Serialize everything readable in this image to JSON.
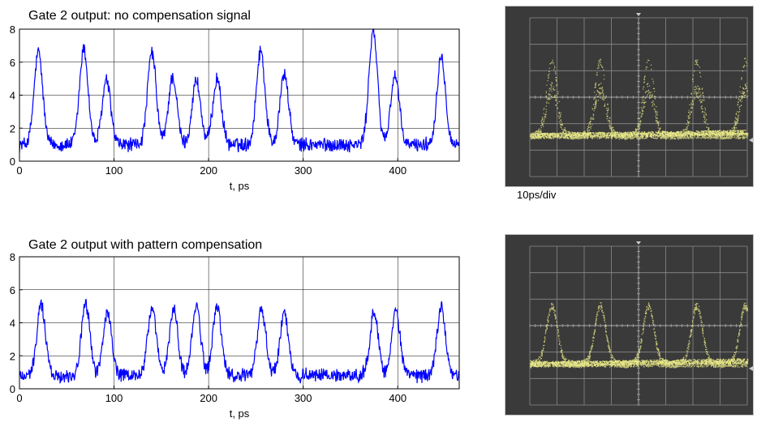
{
  "chart_data": [
    {
      "type": "line",
      "title": "Gate 2 output: no compensation signal",
      "xlabel": "t, ps",
      "ylabel": "",
      "xlim": [
        0,
        465
      ],
      "ylim": [
        0,
        8
      ],
      "xticks": [
        0,
        100,
        200,
        300,
        400
      ],
      "yticks": [
        0,
        2,
        4,
        6,
        8
      ],
      "grid": true,
      "baseline": 1.0,
      "pulse_width_ps": 4.5,
      "color": "#0000ff",
      "pulses": [
        {
          "t": 20,
          "peak": 6.6
        },
        {
          "t": 68,
          "peak": 6.8
        },
        {
          "t": 92,
          "peak": 4.9
        },
        {
          "t": 140,
          "peak": 6.6
        },
        {
          "t": 162,
          "peak": 5.1
        },
        {
          "t": 187,
          "peak": 4.9
        },
        {
          "t": 209,
          "peak": 5.0
        },
        {
          "t": 255,
          "peak": 6.7
        },
        {
          "t": 280,
          "peak": 5.3
        },
        {
          "t": 374,
          "peak": 7.9
        },
        {
          "t": 397,
          "peak": 5.2
        },
        {
          "t": 446,
          "peak": 6.4
        }
      ]
    },
    {
      "type": "line",
      "title": "Gate 2 output with pattern compensation",
      "xlabel": "t, ps",
      "ylabel": "",
      "xlim": [
        0,
        465
      ],
      "ylim": [
        0,
        8
      ],
      "xticks": [
        0,
        100,
        200,
        300,
        400
      ],
      "yticks": [
        0,
        2,
        4,
        6,
        8
      ],
      "grid": true,
      "baseline": 0.8,
      "pulse_width_ps": 4.5,
      "color": "#0000ff",
      "pulses": [
        {
          "t": 23,
          "peak": 5.1
        },
        {
          "t": 70,
          "peak": 5.1
        },
        {
          "t": 93,
          "peak": 4.6
        },
        {
          "t": 140,
          "peak": 4.9
        },
        {
          "t": 163,
          "peak": 4.8
        },
        {
          "t": 187,
          "peak": 5.0
        },
        {
          "t": 209,
          "peak": 5.0
        },
        {
          "t": 256,
          "peak": 4.8
        },
        {
          "t": 280,
          "peak": 4.6
        },
        {
          "t": 375,
          "peak": 4.6
        },
        {
          "t": 398,
          "peak": 4.6
        },
        {
          "t": 446,
          "peak": 5.0
        }
      ]
    }
  ],
  "scopes": [
    {
      "name": "eye-diagram-no-compensation",
      "caption": "10ps/div"
    },
    {
      "name": "eye-diagram-with-compensation",
      "caption": ""
    }
  ],
  "colors": {
    "trace": "#0000ff",
    "scope_bg": "#3a3a3a",
    "scope_trace": "#f2f28c",
    "scope_grid": "#8a8a8a"
  }
}
